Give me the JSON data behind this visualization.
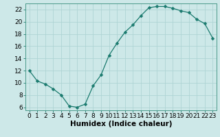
{
  "x": [
    0,
    1,
    2,
    3,
    4,
    5,
    6,
    7,
    8,
    9,
    10,
    11,
    12,
    13,
    14,
    15,
    16,
    17,
    18,
    19,
    20,
    21,
    22,
    23
  ],
  "y": [
    12,
    10.3,
    9.8,
    9.0,
    8.0,
    6.2,
    6.0,
    6.5,
    9.5,
    11.3,
    14.5,
    16.5,
    18.3,
    19.5,
    21.0,
    22.3,
    22.5,
    22.5,
    22.2,
    21.8,
    21.5,
    20.4,
    19.7,
    17.3
  ],
  "line_color": "#1a7a6e",
  "marker": "D",
  "marker_size": 2.5,
  "bg_color": "#cde8e8",
  "grid_color": "#aed4d4",
  "xlabel": "Humidex (Indice chaleur)",
  "xlim": [
    -0.5,
    23.5
  ],
  "ylim": [
    5.5,
    23.0
  ],
  "yticks": [
    6,
    8,
    10,
    12,
    14,
    16,
    18,
    20,
    22
  ],
  "xticks": [
    0,
    1,
    2,
    3,
    4,
    5,
    6,
    7,
    8,
    9,
    10,
    11,
    12,
    13,
    14,
    15,
    16,
    17,
    18,
    19,
    20,
    21,
    22,
    23
  ],
  "tick_fontsize": 6.5,
  "xlabel_fontsize": 7.5,
  "spine_color": "#4a9a8a",
  "tick_color": "#1a7a6e"
}
